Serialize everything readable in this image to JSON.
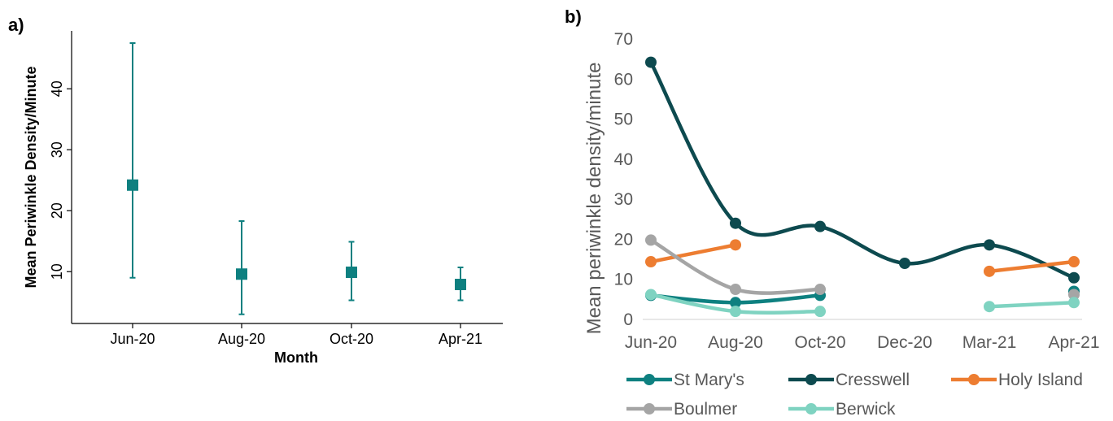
{
  "chart_data": [
    {
      "panel_label": "a)",
      "type": "scatter",
      "xlabel": "Month",
      "ylabel": "Mean Periwinkle Density/Minute",
      "categories": [
        "Jun-20",
        "Aug-20",
        "Oct-20",
        "Apr-21"
      ],
      "values": [
        24.2,
        9.6,
        9.9,
        7.9
      ],
      "error_low": [
        9.0,
        3.0,
        5.3,
        5.3
      ],
      "error_high": [
        47.5,
        18.3,
        14.9,
        10.7
      ],
      "yticks": [
        10,
        20,
        30,
        40
      ],
      "ylim": [
        1.5,
        49.5
      ],
      "marker": "square",
      "color": "#0E8080",
      "grid": false
    },
    {
      "panel_label": "b)",
      "type": "line",
      "xlabel": "",
      "ylabel": "Mean periwinkle density/minute",
      "categories": [
        "Jun-20",
        "Aug-20",
        "Oct-20",
        "Dec-20",
        "Mar-21",
        "Apr-21"
      ],
      "ylim": [
        0,
        70
      ],
      "yticks": [
        0,
        10,
        20,
        30,
        40,
        50,
        60,
        70
      ],
      "grid": false,
      "legend_position": "bottom",
      "series": [
        {
          "name": "St Mary's",
          "color": "#0E8080",
          "values": [
            6.0,
            4.2,
            6.0,
            null,
            null,
            7.0
          ]
        },
        {
          "name": "Cresswell",
          "color": "#0D4A4F",
          "values": [
            64.2,
            24.0,
            23.2,
            14.0,
            18.6,
            10.4
          ]
        },
        {
          "name": "Holy Island",
          "color": "#ED7D31",
          "values": [
            14.4,
            18.6,
            null,
            null,
            12.0,
            14.4
          ]
        },
        {
          "name": "Boulmer",
          "color": "#A5A5A5",
          "values": [
            19.8,
            7.5,
            7.5,
            null,
            null,
            6.2
          ]
        },
        {
          "name": "Berwick",
          "color": "#7FD3C1",
          "values": [
            6.2,
            2.0,
            2.0,
            null,
            3.2,
            4.2
          ]
        }
      ]
    }
  ]
}
